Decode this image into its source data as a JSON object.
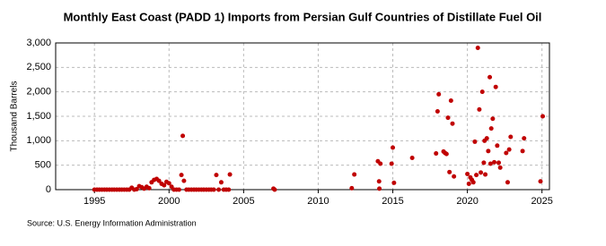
{
  "chart_data": {
    "type": "scatter",
    "title": "Monthly East Coast (PADD 1) Imports from Persian Gulf Countries of Distillate Fuel Oil",
    "y_label": "Thousand Barrels",
    "source": "Source: U.S. Energy Information Administration",
    "color": "#c00000",
    "grid": true,
    "xlim": [
      1992.4,
      2025.5
    ],
    "ylim": [
      0,
      3000
    ],
    "xticks": [
      1995,
      2000,
      2005,
      2010,
      2015,
      2020,
      2025
    ],
    "yticks": [
      0,
      {
        "value": 500,
        "label": "500"
      },
      {
        "value": 1000,
        "label": "1,000"
      },
      {
        "value": 1500,
        "label": "1,500"
      },
      {
        "value": 2000,
        "label": "2,000"
      },
      {
        "value": 2500,
        "label": "2,500"
      },
      {
        "value": 3000,
        "label": "3,000"
      }
    ],
    "x": [
      1995,
      1995.17,
      1995.33,
      1995.5,
      1995.67,
      1995.83,
      1996,
      1996.17,
      1996.33,
      1996.5,
      1996.67,
      1996.83,
      1997,
      1997.17,
      1997.33,
      1997.5,
      1997.67,
      1997.83,
      1998,
      1998.17,
      1998.33,
      1998.5,
      1998.67,
      1998.83,
      1999,
      1999.17,
      1999.33,
      1999.5,
      1999.67,
      1999.83,
      2000,
      2000.17,
      2000.33,
      2000.5,
      2000.67,
      2000.83,
      2000.92,
      2001,
      2001.17,
      2001.33,
      2001.5,
      2001.67,
      2001.83,
      2002,
      2002.17,
      2002.33,
      2002.5,
      2002.67,
      2002.83,
      2003,
      2003.17,
      2003.33,
      2003.5,
      2003.67,
      2003.83,
      2004,
      2004.08,
      2007,
      2007.08,
      2012.25,
      2012.42,
      2014,
      2014.08,
      2014.1,
      2014.17,
      2014.92,
      2015,
      2015.08,
      2016.3,
      2017.9,
      2018,
      2018.08,
      2018.4,
      2018.5,
      2018.6,
      2018.7,
      2018.8,
      2018.9,
      2019,
      2019.1,
      2020,
      2020.1,
      2020.2,
      2020.3,
      2020.4,
      2020.5,
      2020.6,
      2020.7,
      2020.8,
      2020.9,
      2021,
      2021.1,
      2021.15,
      2021.2,
      2021.3,
      2021.4,
      2021.5,
      2021.55,
      2021.6,
      2021.7,
      2021.8,
      2021.9,
      2022,
      2022.1,
      2022.2,
      2022.6,
      2022.7,
      2022.8,
      2022.9,
      2023.7,
      2023.8,
      2024.9,
      2025.05
    ],
    "values": [
      0,
      0,
      0,
      0,
      0,
      0,
      0,
      0,
      0,
      0,
      0,
      0,
      0,
      0,
      0,
      40,
      0,
      10,
      70,
      50,
      20,
      60,
      30,
      150,
      200,
      220,
      180,
      120,
      90,
      160,
      130,
      60,
      0,
      0,
      0,
      300,
      1100,
      180,
      0,
      0,
      0,
      0,
      0,
      0,
      0,
      0,
      0,
      0,
      0,
      0,
      300,
      0,
      150,
      0,
      0,
      0,
      310,
      20,
      0,
      30,
      310,
      580,
      170,
      20,
      530,
      530,
      860,
      140,
      650,
      740,
      1600,
      1950,
      780,
      750,
      730,
      1470,
      360,
      1820,
      1350,
      270,
      320,
      120,
      250,
      200,
      150,
      980,
      300,
      2900,
      1640,
      350,
      2000,
      550,
      1000,
      310,
      1050,
      790,
      2300,
      530,
      1250,
      1450,
      560,
      2100,
      900,
      550,
      450,
      750,
      150,
      820,
      1080,
      790,
      1050,
      170,
      1500
    ]
  }
}
